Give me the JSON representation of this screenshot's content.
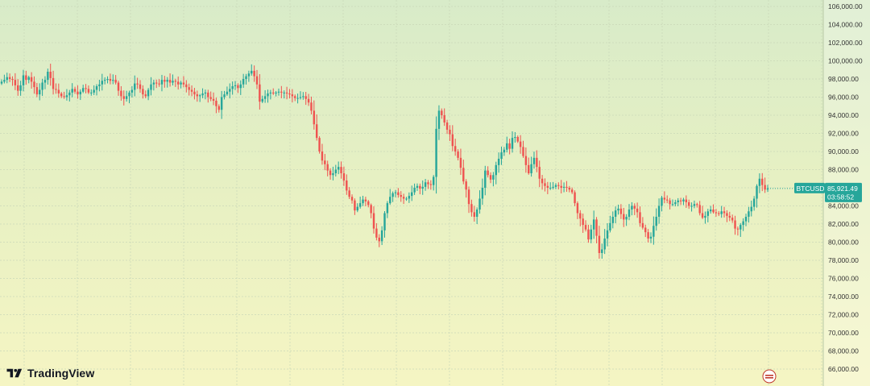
{
  "brand": {
    "name": "TradingView"
  },
  "price_label": {
    "symbol": "BTCUSD",
    "price": "85,921.49",
    "countdown": "03:58:52",
    "color": "#26a69a"
  },
  "colors": {
    "up": "#26a69a",
    "down": "#ef5350"
  },
  "icons": [
    "tradingview-logo-icon",
    "watermark-badge-icon"
  ],
  "chart_data": {
    "type": "candlestick",
    "title": "",
    "xlabel": "",
    "ylabel": "",
    "ylim": [
      65000,
      107000
    ],
    "grid": true,
    "y_ticks": [
      "106,000.00",
      "104,000.00",
      "102,000.00",
      "100,000.00",
      "98,000.00",
      "96,000.00",
      "94,000.00",
      "92,000.00",
      "90,000.00",
      "88,000.00",
      "86,000.00",
      "84,000.00",
      "82,000.00",
      "80,000.00",
      "78,000.00",
      "76,000.00",
      "74,000.00",
      "72,000.00",
      "70,000.00",
      "68,000.00",
      "66,000.00"
    ],
    "y_tick_values": [
      106000,
      104000,
      102000,
      100000,
      98000,
      96000,
      94000,
      92000,
      90000,
      88000,
      86000,
      84000,
      82000,
      80000,
      78000,
      76000,
      74000,
      72000,
      70000,
      68000,
      66000
    ],
    "last_price": 85921.49,
    "closes": [
      97700,
      97900,
      98200,
      98000,
      97900,
      97300,
      96700,
      97300,
      98400,
      97900,
      98200,
      97700,
      97100,
      96300,
      96800,
      97600,
      97900,
      98800,
      98100,
      96900,
      96800,
      96400,
      96100,
      96000,
      96200,
      96500,
      96900,
      96600,
      96300,
      96600,
      97000,
      96900,
      96500,
      96500,
      96800,
      97200,
      97400,
      97800,
      97900,
      98000,
      97800,
      97900,
      97600,
      96700,
      96100,
      95800,
      96100,
      96500,
      96800,
      97500,
      97400,
      96900,
      96300,
      96100,
      96800,
      97400,
      97600,
      97500,
      97400,
      97900,
      97700,
      97900,
      97600,
      97800,
      97700,
      97400,
      97600,
      97400,
      97100,
      96800,
      96600,
      96300,
      96100,
      96200,
      96400,
      96500,
      96000,
      95800,
      95600,
      95000,
      94600,
      96000,
      96300,
      96600,
      96900,
      97200,
      97300,
      97000,
      97400,
      98000,
      98300,
      98600,
      98900,
      98300,
      97400,
      95500,
      95800,
      96100,
      96400,
      96500,
      96400,
      96500,
      96600,
      96500,
      96500,
      96400,
      96300,
      96100,
      95900,
      95900,
      96000,
      96100,
      95800,
      95400,
      94500,
      93000,
      91500,
      90000,
      89000,
      88600,
      87900,
      87400,
      87600,
      88000,
      88300,
      87600,
      86800,
      85700,
      85000,
      84600,
      83500,
      83900,
      84300,
      84700,
      84500,
      84100,
      83200,
      81500,
      80500,
      80100,
      81300,
      83200,
      84300,
      85000,
      85400,
      85500,
      85200,
      85000,
      84800,
      84800,
      85100,
      85500,
      86000,
      86200,
      85900,
      86100,
      86600,
      86400,
      86300,
      87200,
      92500,
      94500,
      94000,
      93200,
      92400,
      91900,
      90600,
      90000,
      89300,
      88200,
      86700,
      85800,
      84200,
      83300,
      82800,
      83600,
      84800,
      86000,
      87900,
      87400,
      86900,
      87400,
      88500,
      89200,
      89900,
      90200,
      90900,
      90300,
      91500,
      91600,
      91100,
      90500,
      89500,
      88500,
      87600,
      88600,
      89300,
      88300,
      87000,
      86500,
      86200,
      86000,
      86000,
      86100,
      86300,
      86200,
      86000,
      86100,
      86000,
      85800,
      85500,
      84300,
      83200,
      82600,
      81900,
      81400,
      80300,
      81400,
      82500,
      80700,
      78800,
      79200,
      80400,
      81300,
      82100,
      82800,
      83500,
      83700,
      83100,
      82500,
      82800,
      83600,
      84000,
      83700,
      83300,
      82100,
      81600,
      81100,
      80400,
      80600,
      81800,
      82800,
      84000,
      84900,
      84700,
      84600,
      84200,
      84200,
      84400,
      84600,
      84500,
      84700,
      84400,
      84000,
      84000,
      84200,
      84100,
      83200,
      82700,
      82900,
      83400,
      83600,
      83300,
      83200,
      83100,
      83400,
      83200,
      82900,
      82700,
      82400,
      81500,
      81400,
      81900,
      82300,
      82800,
      83400,
      83900,
      84800,
      86200,
      87000,
      86300,
      85800,
      85921.49
    ]
  }
}
